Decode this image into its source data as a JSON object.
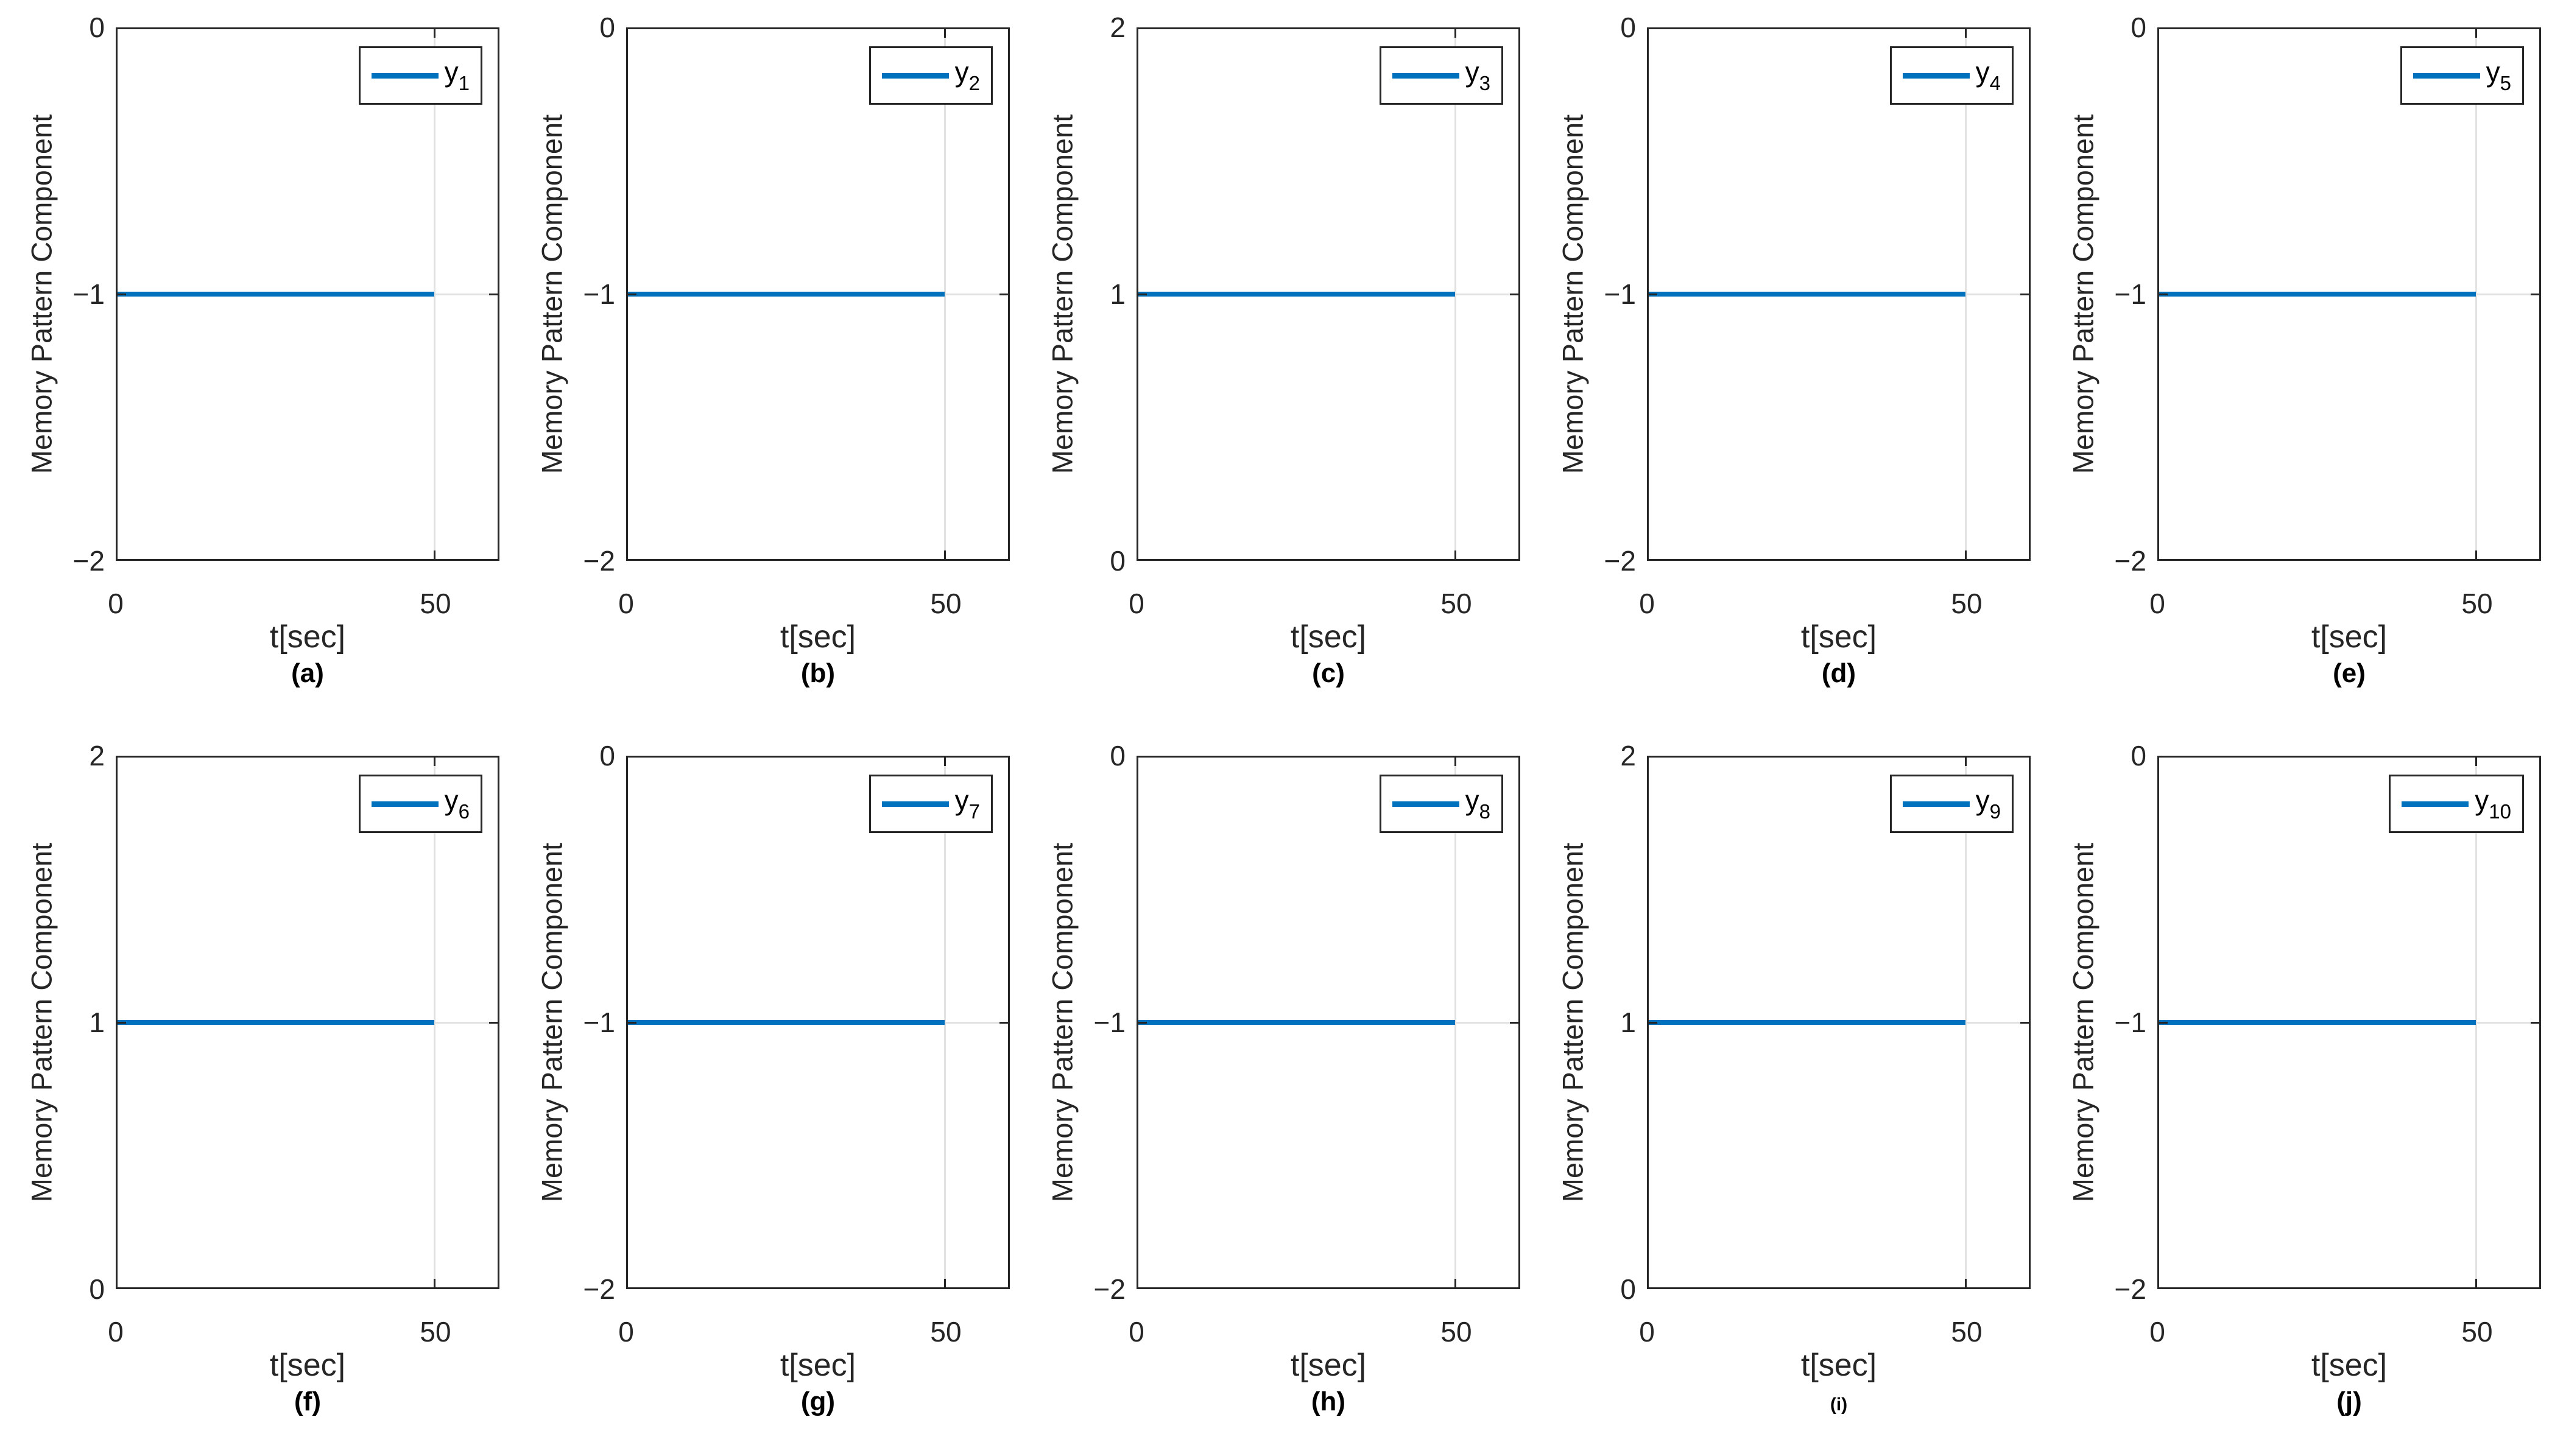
{
  "figure": {
    "background": "#ffffff",
    "line_color": "#0072BD",
    "axis_color": "#262626",
    "grid_color": "#e2e2e2",
    "caption_color": "#000000",
    "rows": 2,
    "cols": 5
  },
  "chart_data": [
    {
      "type": "line",
      "panel": "(a)",
      "caption_small": false,
      "xlabel": "t[sec]",
      "ylabel": "Memory Pattern Component",
      "xlim": [
        0,
        60
      ],
      "ylim": [
        -2,
        0
      ],
      "xticks": [
        0,
        50
      ],
      "yticks": [
        0,
        -1,
        -2
      ],
      "xtick_labels": [
        "0",
        "50"
      ],
      "ytick_labels": [
        "0",
        "−1",
        "−2"
      ],
      "grid": true,
      "legend_position": "top-right",
      "series": [
        {
          "name": "y_1",
          "legend_base": "y",
          "legend_sub": "1",
          "x": [
            0,
            50
          ],
          "y": [
            -1,
            -1
          ]
        }
      ]
    },
    {
      "type": "line",
      "panel": "(b)",
      "caption_small": false,
      "xlabel": "t[sec]",
      "ylabel": "Memory Pattern Component",
      "xlim": [
        0,
        60
      ],
      "ylim": [
        -2,
        0
      ],
      "xticks": [
        0,
        50
      ],
      "yticks": [
        0,
        -1,
        -2
      ],
      "xtick_labels": [
        "0",
        "50"
      ],
      "ytick_labels": [
        "0",
        "−1",
        "−2"
      ],
      "grid": true,
      "legend_position": "top-right",
      "series": [
        {
          "name": "y_2",
          "legend_base": "y",
          "legend_sub": "2",
          "x": [
            0,
            50
          ],
          "y": [
            -1,
            -1
          ]
        }
      ]
    },
    {
      "type": "line",
      "panel": "(c)",
      "caption_small": false,
      "xlabel": "t[sec]",
      "ylabel": "Memory Pattern Component",
      "xlim": [
        0,
        60
      ],
      "ylim": [
        0,
        2
      ],
      "xticks": [
        0,
        50
      ],
      "yticks": [
        2,
        1,
        0
      ],
      "xtick_labels": [
        "0",
        "50"
      ],
      "ytick_labels": [
        "2",
        "1",
        "0"
      ],
      "grid": true,
      "legend_position": "top-right",
      "series": [
        {
          "name": "y_3",
          "legend_base": "y",
          "legend_sub": "3",
          "x": [
            0,
            50
          ],
          "y": [
            1,
            1
          ]
        }
      ]
    },
    {
      "type": "line",
      "panel": "(d)",
      "caption_small": false,
      "xlabel": "t[sec]",
      "ylabel": "Memory Pattern Component",
      "xlim": [
        0,
        60
      ],
      "ylim": [
        -2,
        0
      ],
      "xticks": [
        0,
        50
      ],
      "yticks": [
        0,
        -1,
        -2
      ],
      "xtick_labels": [
        "0",
        "50"
      ],
      "ytick_labels": [
        "0",
        "−1",
        "−2"
      ],
      "grid": true,
      "legend_position": "top-right",
      "series": [
        {
          "name": "y_4",
          "legend_base": "y",
          "legend_sub": "4",
          "x": [
            0,
            50
          ],
          "y": [
            -1,
            -1
          ]
        }
      ]
    },
    {
      "type": "line",
      "panel": "(e)",
      "caption_small": false,
      "xlabel": "t[sec]",
      "ylabel": "Memory Pattern Component",
      "xlim": [
        0,
        60
      ],
      "ylim": [
        -2,
        0
      ],
      "xticks": [
        0,
        50
      ],
      "yticks": [
        0,
        -1,
        -2
      ],
      "xtick_labels": [
        "0",
        "50"
      ],
      "ytick_labels": [
        "0",
        "−1",
        "−2"
      ],
      "grid": true,
      "legend_position": "top-right",
      "series": [
        {
          "name": "y_5",
          "legend_base": "y",
          "legend_sub": "5",
          "x": [
            0,
            50
          ],
          "y": [
            -1,
            -1
          ]
        }
      ]
    },
    {
      "type": "line",
      "panel": "(f)",
      "caption_small": false,
      "xlabel": "t[sec]",
      "ylabel": "Memory Pattern Component",
      "xlim": [
        0,
        60
      ],
      "ylim": [
        0,
        2
      ],
      "xticks": [
        0,
        50
      ],
      "yticks": [
        2,
        1,
        0
      ],
      "xtick_labels": [
        "0",
        "50"
      ],
      "ytick_labels": [
        "2",
        "1",
        "0"
      ],
      "grid": true,
      "legend_position": "top-right",
      "series": [
        {
          "name": "y_6",
          "legend_base": "y",
          "legend_sub": "6",
          "x": [
            0,
            50
          ],
          "y": [
            1,
            1
          ]
        }
      ]
    },
    {
      "type": "line",
      "panel": "(g)",
      "caption_small": false,
      "xlabel": "t[sec]",
      "ylabel": "Memory Pattern Component",
      "xlim": [
        0,
        60
      ],
      "ylim": [
        -2,
        0
      ],
      "xticks": [
        0,
        50
      ],
      "yticks": [
        0,
        -1,
        -2
      ],
      "xtick_labels": [
        "0",
        "50"
      ],
      "ytick_labels": [
        "0",
        "−1",
        "−2"
      ],
      "grid": true,
      "legend_position": "top-right",
      "series": [
        {
          "name": "y_7",
          "legend_base": "y",
          "legend_sub": "7",
          "x": [
            0,
            50
          ],
          "y": [
            -1,
            -1
          ]
        }
      ]
    },
    {
      "type": "line",
      "panel": "(h)",
      "caption_small": false,
      "xlabel": "t[sec]",
      "ylabel": "Memory Pattern Component",
      "xlim": [
        0,
        60
      ],
      "ylim": [
        -2,
        0
      ],
      "xticks": [
        0,
        50
      ],
      "yticks": [
        0,
        -1,
        -2
      ],
      "xtick_labels": [
        "0",
        "50"
      ],
      "ytick_labels": [
        "0",
        "−1",
        "−2"
      ],
      "grid": true,
      "legend_position": "top-right",
      "series": [
        {
          "name": "y_8",
          "legend_base": "y",
          "legend_sub": "8",
          "x": [
            0,
            50
          ],
          "y": [
            -1,
            -1
          ]
        }
      ]
    },
    {
      "type": "line",
      "panel": "(i)",
      "caption_small": true,
      "xlabel": "t[sec]",
      "ylabel": "Memory Pattern Component",
      "xlim": [
        0,
        60
      ],
      "ylim": [
        0,
        2
      ],
      "xticks": [
        0,
        50
      ],
      "yticks": [
        2,
        1,
        0
      ],
      "xtick_labels": [
        "0",
        "50"
      ],
      "ytick_labels": [
        "2",
        "1",
        "0"
      ],
      "grid": true,
      "legend_position": "top-right",
      "series": [
        {
          "name": "y_9",
          "legend_base": "y",
          "legend_sub": "9",
          "x": [
            0,
            50
          ],
          "y": [
            1,
            1
          ]
        }
      ]
    },
    {
      "type": "line",
      "panel": "(j)",
      "caption_small": false,
      "xlabel": "t[sec]",
      "ylabel": "Memory Pattern Component",
      "xlim": [
        0,
        60
      ],
      "ylim": [
        -2,
        0
      ],
      "xticks": [
        0,
        50
      ],
      "yticks": [
        0,
        -1,
        -2
      ],
      "xtick_labels": [
        "0",
        "50"
      ],
      "ytick_labels": [
        "0",
        "−1",
        "−2"
      ],
      "grid": true,
      "legend_position": "top-right",
      "series": [
        {
          "name": "y_10",
          "legend_base": "y",
          "legend_sub": "10",
          "x": [
            0,
            50
          ],
          "y": [
            -1,
            -1
          ]
        }
      ]
    }
  ]
}
